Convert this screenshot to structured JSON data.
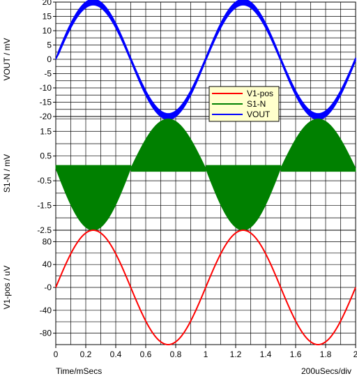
{
  "footer": {
    "time_label": "Time/mSecs",
    "div_label": "200uSecs/div"
  },
  "legend": {
    "entries": [
      {
        "label": "V1-pos",
        "color": "#ff0000"
      },
      {
        "label": "S1-N",
        "color": "#008000"
      },
      {
        "label": "VOUT",
        "color": "#0000ff"
      }
    ]
  },
  "chart_data": [
    {
      "type": "line",
      "ylabel": "VOUT / mV",
      "ylim": [
        -20,
        20
      ],
      "yticks": [
        20,
        15,
        10,
        5,
        0,
        -5,
        -10,
        -15,
        -20
      ],
      "ytick_labels": [
        "20",
        "15",
        "10",
        "5",
        "0",
        "-5",
        "-10",
        "-15",
        "-20"
      ],
      "grid": true,
      "series": [
        {
          "name": "VOUT",
          "color": "#0000ff",
          "waveform": "sine with ripple band",
          "frequency_khz": 1,
          "amplitude_mV": 20,
          "ripple_band_mV": 2,
          "x_start_ms": 0,
          "x_end_ms": 2,
          "peaks": [
            {
              "x_ms": 0.25,
              "y": 20
            },
            {
              "x_ms": 0.75,
              "y": -20
            },
            {
              "x_ms": 1.25,
              "y": 20
            },
            {
              "x_ms": 1.75,
              "y": -20
            }
          ]
        }
      ]
    },
    {
      "type": "area",
      "ylabel": "S1-N / mV",
      "ylim": [
        -2.5,
        2.1
      ],
      "yticks": [
        1.5,
        0.5,
        -0.5,
        -1.5,
        -2.5
      ],
      "ytick_labels": [
        "1.5",
        "0.5",
        "-0.5",
        "-1.5",
        "-2.5"
      ],
      "grid": true,
      "series": [
        {
          "name": "S1-N",
          "color": "#008000",
          "waveform": "switched envelope",
          "baseline_mV": 0,
          "first_half_cycle_min_mV": -2.5,
          "second_half_cycle_max_mV": 2.0,
          "x_start_ms": 0,
          "x_end_ms": 2
        }
      ]
    },
    {
      "type": "line",
      "ylabel": "V1-pos / uV",
      "xlabel": "Time/mSecs",
      "xlim": [
        0,
        2
      ],
      "xticks": [
        0,
        0.2,
        0.4,
        0.6,
        0.8,
        1,
        1.2,
        1.4,
        1.6,
        1.8,
        2
      ],
      "xtick_labels": [
        "0",
        "0.2",
        "0.4",
        "0.6",
        "0.8",
        "1",
        "1.2",
        "1.4",
        "1.6",
        "1.8",
        "2"
      ],
      "ylim": [
        -100,
        100
      ],
      "yticks": [
        80,
        40,
        0,
        -40,
        -80
      ],
      "ytick_labels": [
        "80",
        "40",
        "-0",
        "-40",
        "-80"
      ],
      "grid": true,
      "series": [
        {
          "name": "V1-pos",
          "color": "#ff0000",
          "waveform": "sine",
          "frequency_khz": 1,
          "amplitude_uV": 100,
          "x_start_ms": 0,
          "x_end_ms": 2,
          "peaks": [
            {
              "x_ms": 0.25,
              "y": 100
            },
            {
              "x_ms": 0.75,
              "y": -100
            },
            {
              "x_ms": 1.25,
              "y": 100
            },
            {
              "x_ms": 1.75,
              "y": -100
            }
          ]
        }
      ]
    }
  ]
}
